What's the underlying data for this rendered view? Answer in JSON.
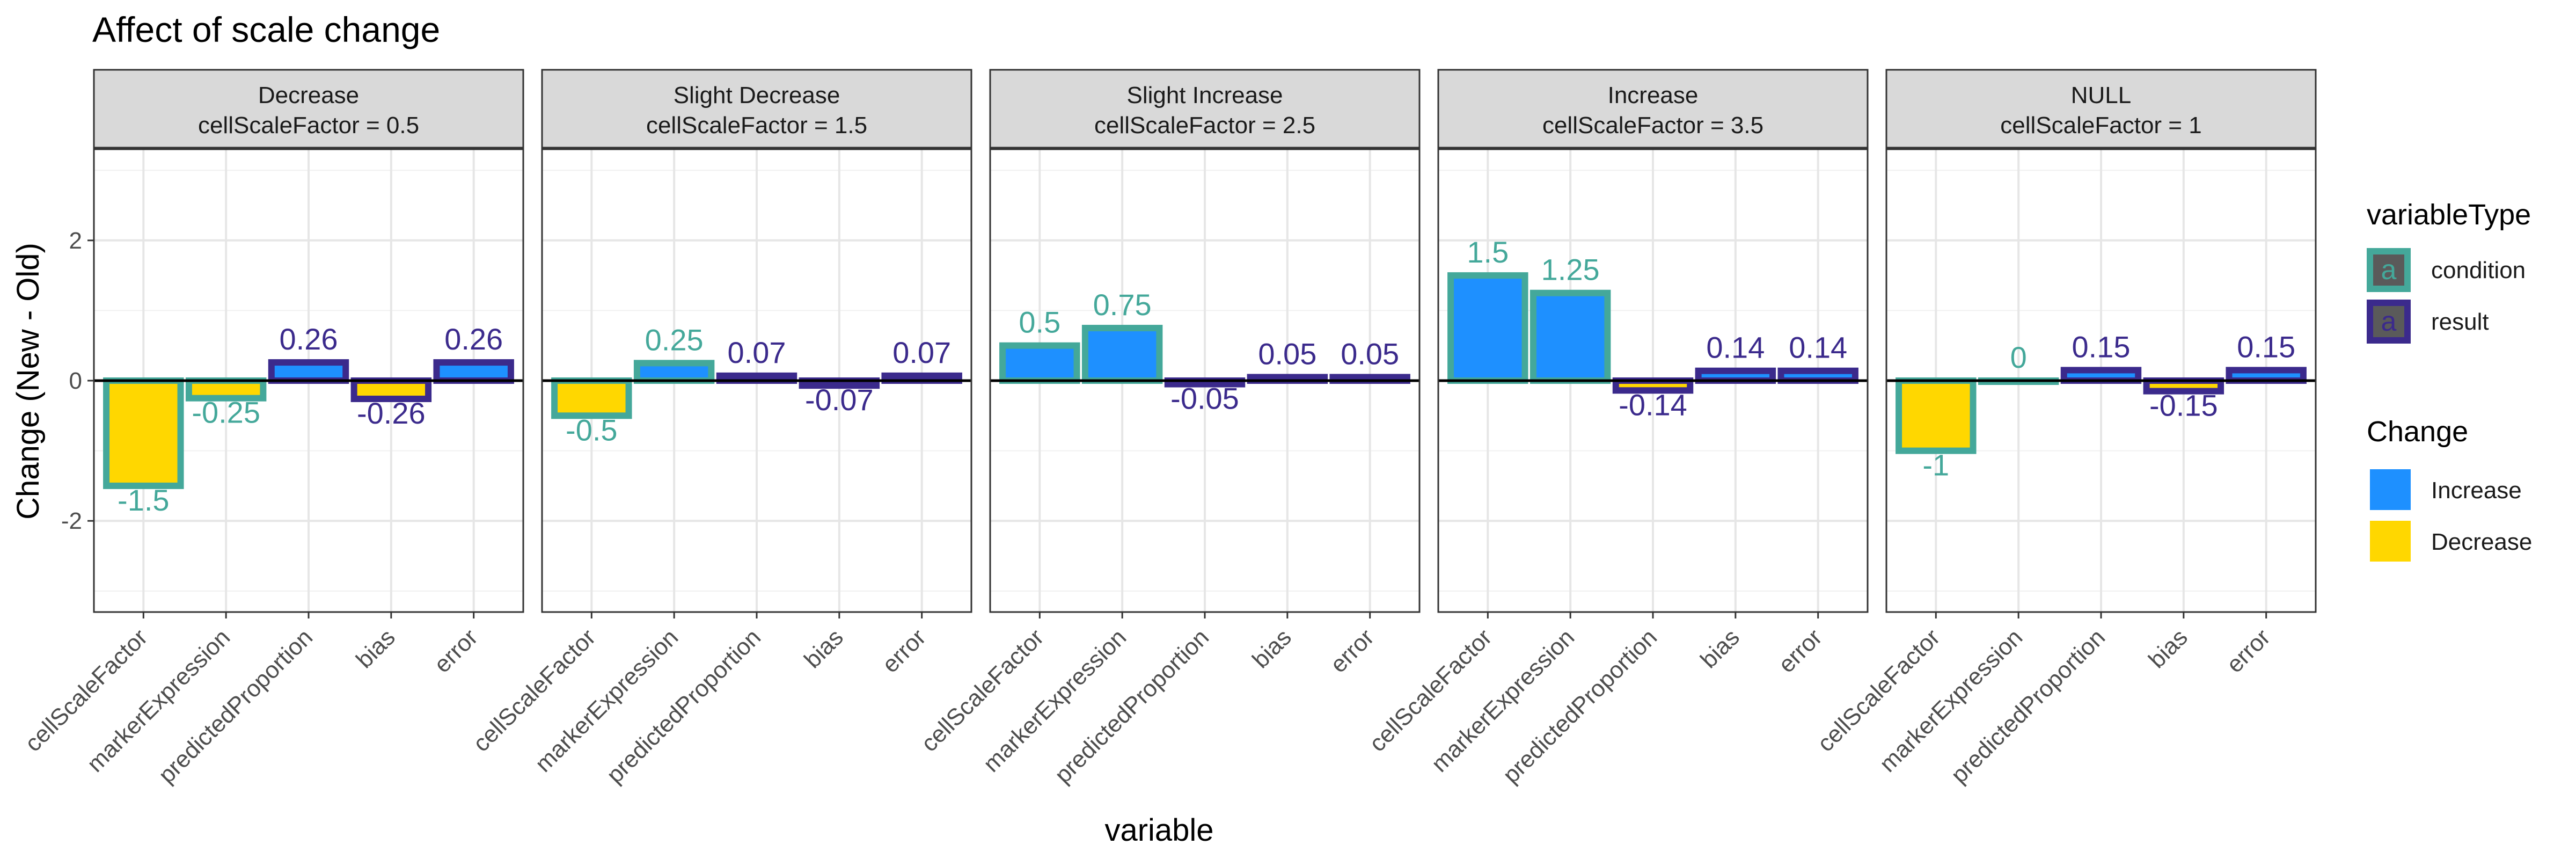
{
  "chart_data": {
    "type": "bar",
    "title": "Affect of scale change",
    "xlabel": "variable",
    "ylabel": "Change (New - Old)",
    "ylim": [
      -3.3,
      3.3
    ],
    "yticks": [
      -2,
      0,
      2
    ],
    "grid": true,
    "categories": [
      "cellScaleFactor",
      "markerExpression",
      "predictedProportion",
      "bias",
      "error"
    ],
    "variable_types": [
      "condition",
      "condition",
      "result",
      "result",
      "result"
    ],
    "panels": [
      {
        "title": "Decrease",
        "subtitle": "cellScaleFactor = 0.5",
        "values": [
          -1.5,
          -0.25,
          0.26,
          -0.26,
          0.26
        ],
        "labels": [
          "-1.5",
          "-0.25",
          "0.26",
          "-0.26",
          "0.26"
        ]
      },
      {
        "title": "Slight Decrease",
        "subtitle": "cellScaleFactor = 1.5",
        "values": [
          -0.5,
          0.25,
          0.07,
          -0.07,
          0.07
        ],
        "labels": [
          "-0.5",
          "0.25",
          "0.07",
          "-0.07",
          "0.07"
        ]
      },
      {
        "title": "Slight Increase",
        "subtitle": "cellScaleFactor = 2.5",
        "values": [
          0.5,
          0.75,
          -0.05,
          0.05,
          0.05
        ],
        "labels": [
          "0.5",
          "0.75",
          "-0.05",
          "0.05",
          "0.05"
        ]
      },
      {
        "title": "Increase",
        "subtitle": "cellScaleFactor = 3.5",
        "values": [
          1.5,
          1.25,
          -0.14,
          0.14,
          0.14
        ],
        "labels": [
          "1.5",
          "1.25",
          "-0.14",
          "0.14",
          "0.14"
        ]
      },
      {
        "title": "NULL",
        "subtitle": "cellScaleFactor = 1",
        "values": [
          -1,
          0,
          0.15,
          -0.15,
          0.15
        ],
        "labels": [
          "-1",
          "0",
          "0.15",
          "-0.15",
          "0.15"
        ]
      }
    ],
    "legends": {
      "variableType": {
        "title": "variableType",
        "items": [
          {
            "label": "condition",
            "color": "#44a89a",
            "glyph": "a"
          },
          {
            "label": "result",
            "color": "#3b2a8c",
            "glyph": "a"
          }
        ]
      },
      "change": {
        "title": "Change",
        "items": [
          {
            "label": "Increase",
            "color": "#1e90ff"
          },
          {
            "label": "Decrease",
            "color": "#ffd700"
          }
        ]
      }
    },
    "legend_position": "right"
  }
}
